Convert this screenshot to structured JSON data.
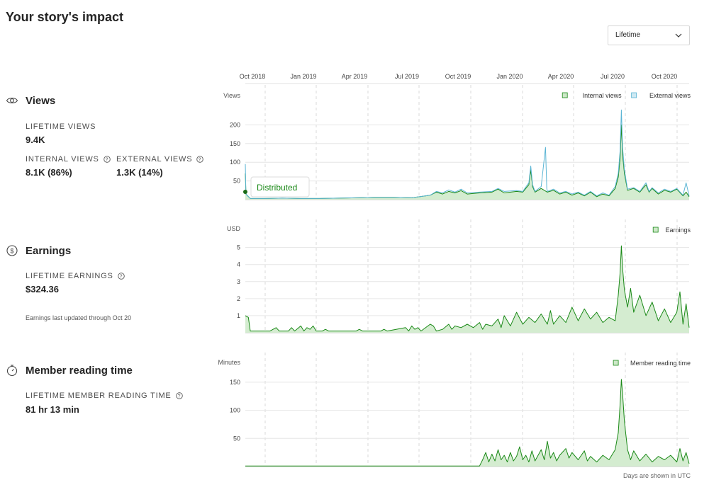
{
  "page": {
    "title": "Your story's impact",
    "range_select": {
      "value": "Lifetime"
    },
    "footer_note": "Days are shown in UTC"
  },
  "timeline": [
    "Oct 2018",
    "Jan 2019",
    "Apr 2019",
    "Jul 2019",
    "Oct 2019",
    "Jan 2020",
    "Apr 2020",
    "Jul 2020",
    "Oct 2020"
  ],
  "views": {
    "heading": "Views",
    "lifetime_label": "LIFETIME VIEWS",
    "lifetime_value": "9.4K",
    "internal_label": "INTERNAL VIEWS",
    "internal_value": "8.1K (86%)",
    "external_label": "EXTERNAL VIEWS",
    "external_value": "1.3K (14%)"
  },
  "earnings": {
    "heading": "Earnings",
    "lifetime_label": "LIFETIME EARNINGS",
    "lifetime_value": "$324.36",
    "note": "Earnings last updated through Oct 20"
  },
  "reading": {
    "heading": "Member reading time",
    "lifetime_label": "LIFETIME MEMBER READING TIME",
    "lifetime_value": "81 hr 13 min"
  },
  "colors": {
    "internal_fill": "#d4ecd0",
    "internal_line": "#1a8917",
    "external_line": "#5bb5d4",
    "grid": "#e6e6e6",
    "month_dash": "#d9d9d9"
  },
  "chart_data": [
    {
      "type": "area",
      "name": "views",
      "unit_label": "Views",
      "yticks": [
        50,
        100,
        150,
        200
      ],
      "ylim": [
        0,
        250
      ],
      "legend": [
        "Internal views",
        "External views"
      ],
      "annotation": "Distributed",
      "series": [
        {
          "name": "Internal views",
          "points": [
            [
              0,
              70
            ],
            [
              1,
              15
            ],
            [
              8,
              3
            ],
            [
              30,
              3
            ],
            [
              60,
              4
            ],
            [
              90,
              3
            ],
            [
              120,
              3
            ],
            [
              150,
              4
            ],
            [
              180,
              5
            ],
            [
              210,
              6
            ],
            [
              240,
              6
            ],
            [
              270,
              5
            ],
            [
              300,
              12
            ],
            [
              310,
              20
            ],
            [
              320,
              15
            ],
            [
              330,
              22
            ],
            [
              340,
              18
            ],
            [
              350,
              24
            ],
            [
              360,
              15
            ],
            [
              380,
              18
            ],
            [
              400,
              20
            ],
            [
              410,
              28
            ],
            [
              420,
              18
            ],
            [
              440,
              22
            ],
            [
              450,
              20
            ],
            [
              460,
              40
            ],
            [
              463,
              80
            ],
            [
              466,
              35
            ],
            [
              470,
              20
            ],
            [
              480,
              30
            ],
            [
              490,
              20
            ],
            [
              500,
              25
            ],
            [
              510,
              15
            ],
            [
              520,
              20
            ],
            [
              530,
              12
            ],
            [
              540,
              18
            ],
            [
              550,
              10
            ],
            [
              560,
              20
            ],
            [
              570,
              8
            ],
            [
              580,
              15
            ],
            [
              590,
              10
            ],
            [
              600,
              30
            ],
            [
              605,
              60
            ],
            [
              608,
              110
            ],
            [
              610,
              200
            ],
            [
              612,
              120
            ],
            [
              615,
              70
            ],
            [
              620,
              25
            ],
            [
              630,
              30
            ],
            [
              640,
              20
            ],
            [
              650,
              40
            ],
            [
              655,
              20
            ],
            [
              660,
              30
            ],
            [
              670,
              15
            ],
            [
              680,
              25
            ],
            [
              690,
              20
            ],
            [
              700,
              28
            ],
            [
              710,
              10
            ],
            [
              715,
              20
            ],
            [
              720,
              8
            ]
          ]
        },
        {
          "name": "External views",
          "points": [
            [
              0,
              95
            ],
            [
              1,
              15
            ],
            [
              8,
              3
            ],
            [
              30,
              3
            ],
            [
              60,
              4
            ],
            [
              90,
              3
            ],
            [
              120,
              3
            ],
            [
              150,
              4
            ],
            [
              180,
              5
            ],
            [
              210,
              6
            ],
            [
              240,
              6
            ],
            [
              270,
              5
            ],
            [
              300,
              12
            ],
            [
              310,
              22
            ],
            [
              320,
              18
            ],
            [
              330,
              26
            ],
            [
              340,
              20
            ],
            [
              350,
              28
            ],
            [
              360,
              18
            ],
            [
              380,
              20
            ],
            [
              400,
              22
            ],
            [
              410,
              30
            ],
            [
              420,
              22
            ],
            [
              440,
              24
            ],
            [
              450,
              22
            ],
            [
              460,
              45
            ],
            [
              463,
              90
            ],
            [
              466,
              40
            ],
            [
              470,
              22
            ],
            [
              480,
              35
            ],
            [
              487,
              140
            ],
            [
              489,
              30
            ],
            [
              490,
              22
            ],
            [
              500,
              28
            ],
            [
              510,
              18
            ],
            [
              520,
              22
            ],
            [
              530,
              15
            ],
            [
              540,
              20
            ],
            [
              550,
              12
            ],
            [
              560,
              22
            ],
            [
              570,
              10
            ],
            [
              580,
              18
            ],
            [
              590,
              12
            ],
            [
              600,
              35
            ],
            [
              605,
              70
            ],
            [
              608,
              130
            ],
            [
              610,
              240
            ],
            [
              612,
              140
            ],
            [
              615,
              80
            ],
            [
              620,
              28
            ],
            [
              630,
              32
            ],
            [
              640,
              22
            ],
            [
              650,
              45
            ],
            [
              655,
              22
            ],
            [
              660,
              32
            ],
            [
              670,
              18
            ],
            [
              680,
              28
            ],
            [
              690,
              22
            ],
            [
              700,
              30
            ],
            [
              710,
              12
            ],
            [
              715,
              45
            ],
            [
              720,
              10
            ]
          ]
        }
      ]
    },
    {
      "type": "area",
      "name": "earnings",
      "unit_label": "USD",
      "yticks": [
        1,
        2,
        3,
        4,
        5
      ],
      "ylim": [
        0,
        5.4
      ],
      "legend": [
        "Earnings"
      ],
      "series": [
        {
          "name": "Earnings",
          "points": [
            [
              0,
              1.0
            ],
            [
              5,
              0.9
            ],
            [
              8,
              0.1
            ],
            [
              40,
              0.1
            ],
            [
              50,
              0.3
            ],
            [
              55,
              0.1
            ],
            [
              70,
              0.1
            ],
            [
              75,
              0.3
            ],
            [
              80,
              0.1
            ],
            [
              90,
              0.4
            ],
            [
              95,
              0.1
            ],
            [
              100,
              0.3
            ],
            [
              105,
              0.2
            ],
            [
              110,
              0.4
            ],
            [
              115,
              0.1
            ],
            [
              125,
              0.1
            ],
            [
              130,
              0.2
            ],
            [
              135,
              0.1
            ],
            [
              180,
              0.1
            ],
            [
              185,
              0.2
            ],
            [
              190,
              0.1
            ],
            [
              220,
              0.1
            ],
            [
              225,
              0.2
            ],
            [
              230,
              0.1
            ],
            [
              260,
              0.3
            ],
            [
              265,
              0.1
            ],
            [
              270,
              0.4
            ],
            [
              275,
              0.2
            ],
            [
              280,
              0.3
            ],
            [
              285,
              0.1
            ],
            [
              300,
              0.5
            ],
            [
              305,
              0.4
            ],
            [
              310,
              0.1
            ],
            [
              320,
              0.2
            ],
            [
              330,
              0.5
            ],
            [
              335,
              0.2
            ],
            [
              340,
              0.4
            ],
            [
              350,
              0.3
            ],
            [
              360,
              0.5
            ],
            [
              370,
              0.3
            ],
            [
              380,
              0.6
            ],
            [
              385,
              0.2
            ],
            [
              390,
              0.5
            ],
            [
              400,
              0.4
            ],
            [
              410,
              0.8
            ],
            [
              415,
              0.3
            ],
            [
              420,
              1.0
            ],
            [
              430,
              0.4
            ],
            [
              440,
              1.2
            ],
            [
              450,
              0.5
            ],
            [
              460,
              0.9
            ],
            [
              470,
              0.6
            ],
            [
              480,
              1.1
            ],
            [
              490,
              0.5
            ],
            [
              495,
              1.3
            ],
            [
              500,
              0.5
            ],
            [
              510,
              1.0
            ],
            [
              520,
              0.6
            ],
            [
              530,
              1.5
            ],
            [
              540,
              0.7
            ],
            [
              550,
              1.4
            ],
            [
              560,
              0.8
            ],
            [
              570,
              1.2
            ],
            [
              580,
              0.6
            ],
            [
              590,
              0.9
            ],
            [
              600,
              0.7
            ],
            [
              605,
              2.2
            ],
            [
              608,
              3.5
            ],
            [
              610,
              5.1
            ],
            [
              612,
              3.8
            ],
            [
              615,
              2.5
            ],
            [
              620,
              1.5
            ],
            [
              625,
              2.6
            ],
            [
              630,
              1.2
            ],
            [
              640,
              2.2
            ],
            [
              650,
              1.0
            ],
            [
              660,
              1.8
            ],
            [
              670,
              0.7
            ],
            [
              680,
              1.4
            ],
            [
              690,
              0.6
            ],
            [
              700,
              1.2
            ],
            [
              705,
              2.4
            ],
            [
              710,
              0.5
            ],
            [
              715,
              1.7
            ],
            [
              720,
              0.3
            ]
          ]
        }
      ]
    },
    {
      "type": "area",
      "name": "member_reading_time",
      "unit_label": "Minutes",
      "yticks": [
        50,
        100,
        150
      ],
      "ylim": [
        0,
        165
      ],
      "legend": [
        "Member reading time"
      ],
      "series": [
        {
          "name": "Member reading time",
          "points": [
            [
              0,
              1
            ],
            [
              380,
              1
            ],
            [
              385,
              12
            ],
            [
              390,
              25
            ],
            [
              395,
              8
            ],
            [
              400,
              22
            ],
            [
              405,
              10
            ],
            [
              410,
              30
            ],
            [
              415,
              12
            ],
            [
              420,
              20
            ],
            [
              425,
              8
            ],
            [
              430,
              25
            ],
            [
              435,
              10
            ],
            [
              440,
              18
            ],
            [
              445,
              35
            ],
            [
              450,
              12
            ],
            [
              455,
              20
            ],
            [
              460,
              8
            ],
            [
              465,
              28
            ],
            [
              470,
              10
            ],
            [
              480,
              30
            ],
            [
              485,
              12
            ],
            [
              490,
              45
            ],
            [
              495,
              15
            ],
            [
              500,
              25
            ],
            [
              505,
              10
            ],
            [
              510,
              20
            ],
            [
              520,
              32
            ],
            [
              525,
              15
            ],
            [
              530,
              25
            ],
            [
              540,
              12
            ],
            [
              550,
              28
            ],
            [
              555,
              10
            ],
            [
              560,
              18
            ],
            [
              570,
              8
            ],
            [
              580,
              20
            ],
            [
              590,
              12
            ],
            [
              600,
              30
            ],
            [
              605,
              60
            ],
            [
              608,
              110
            ],
            [
              610,
              155
            ],
            [
              612,
              130
            ],
            [
              615,
              80
            ],
            [
              620,
              30
            ],
            [
              625,
              12
            ],
            [
              630,
              28
            ],
            [
              640,
              10
            ],
            [
              650,
              22
            ],
            [
              660,
              8
            ],
            [
              670,
              18
            ],
            [
              680,
              12
            ],
            [
              690,
              20
            ],
            [
              700,
              8
            ],
            [
              705,
              32
            ],
            [
              710,
              10
            ],
            [
              715,
              25
            ],
            [
              720,
              5
            ]
          ]
        }
      ]
    }
  ]
}
